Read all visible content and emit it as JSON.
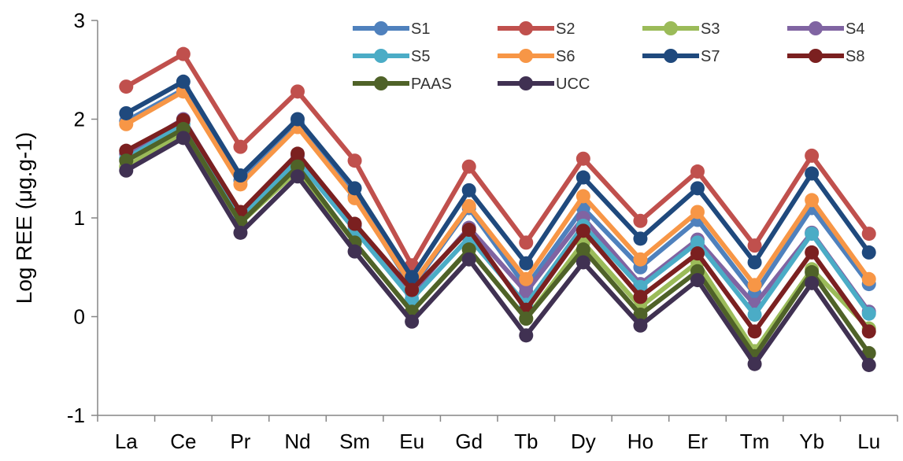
{
  "chart_data": {
    "type": "line",
    "title": "",
    "xlabel": "",
    "ylabel": "Log REE (μg.g-1)",
    "ylim": [
      -1,
      3
    ],
    "yticks": [
      -1,
      0,
      1,
      2,
      3
    ],
    "grid": false,
    "legend": "top-right",
    "categories": [
      "La",
      "Ce",
      "Pr",
      "Nd",
      "Sm",
      "Eu",
      "Gd",
      "Tb",
      "Dy",
      "Ho",
      "Er",
      "Tm",
      "Yb",
      "Lu"
    ],
    "series": [
      {
        "name": "S1",
        "color": "#4F81BD",
        "values": [
          1.98,
          2.3,
          1.38,
          1.96,
          1.22,
          0.3,
          1.1,
          0.3,
          1.1,
          0.5,
          0.98,
          0.23,
          1.1,
          0.33
        ]
      },
      {
        "name": "S2",
        "color": "#C0504D",
        "values": [
          2.33,
          2.66,
          1.72,
          2.28,
          1.58,
          0.52,
          1.52,
          0.75,
          1.6,
          0.97,
          1.47,
          0.72,
          1.63,
          0.84
        ]
      },
      {
        "name": "S3",
        "color": "#9BBB59",
        "values": [
          1.52,
          1.86,
          0.95,
          1.48,
          0.75,
          0.05,
          0.68,
          -0.02,
          0.75,
          0.1,
          0.55,
          -0.35,
          0.48,
          -0.12
        ]
      },
      {
        "name": "S4",
        "color": "#8064A2",
        "values": [
          1.65,
          2.0,
          1.05,
          1.63,
          0.92,
          0.24,
          0.9,
          0.25,
          1.0,
          0.33,
          0.78,
          0.12,
          0.85,
          0.05
        ]
      },
      {
        "name": "S5",
        "color": "#4BACC6",
        "values": [
          1.6,
          1.95,
          1.0,
          1.58,
          0.88,
          0.18,
          0.8,
          0.12,
          0.92,
          0.3,
          0.75,
          0.02,
          0.84,
          0.03
        ]
      },
      {
        "name": "S6",
        "color": "#F79646",
        "values": [
          1.95,
          2.28,
          1.34,
          1.92,
          1.2,
          0.32,
          1.12,
          0.38,
          1.22,
          0.58,
          1.06,
          0.32,
          1.18,
          0.38
        ]
      },
      {
        "name": "S7",
        "color": "#1F497D",
        "values": [
          2.06,
          2.38,
          1.43,
          2.0,
          1.3,
          0.4,
          1.28,
          0.54,
          1.41,
          0.79,
          1.3,
          0.55,
          1.45,
          0.65
        ]
      },
      {
        "name": "S8",
        "color": "#7B2020",
        "values": [
          1.68,
          1.99,
          1.06,
          1.65,
          0.94,
          0.27,
          0.88,
          0.07,
          0.87,
          0.2,
          0.64,
          -0.15,
          0.65,
          -0.15
        ]
      },
      {
        "name": "PAAS",
        "color": "#4F6228",
        "values": [
          1.58,
          1.9,
          0.95,
          1.52,
          0.75,
          0.05,
          0.68,
          -0.02,
          0.68,
          0.02,
          0.46,
          -0.4,
          0.45,
          -0.37
        ]
      },
      {
        "name": "UCC",
        "color": "#403152",
        "values": [
          1.48,
          1.81,
          0.85,
          1.42,
          0.66,
          -0.05,
          0.58,
          -0.19,
          0.55,
          -0.09,
          0.37,
          -0.48,
          0.34,
          -0.49
        ]
      }
    ]
  }
}
